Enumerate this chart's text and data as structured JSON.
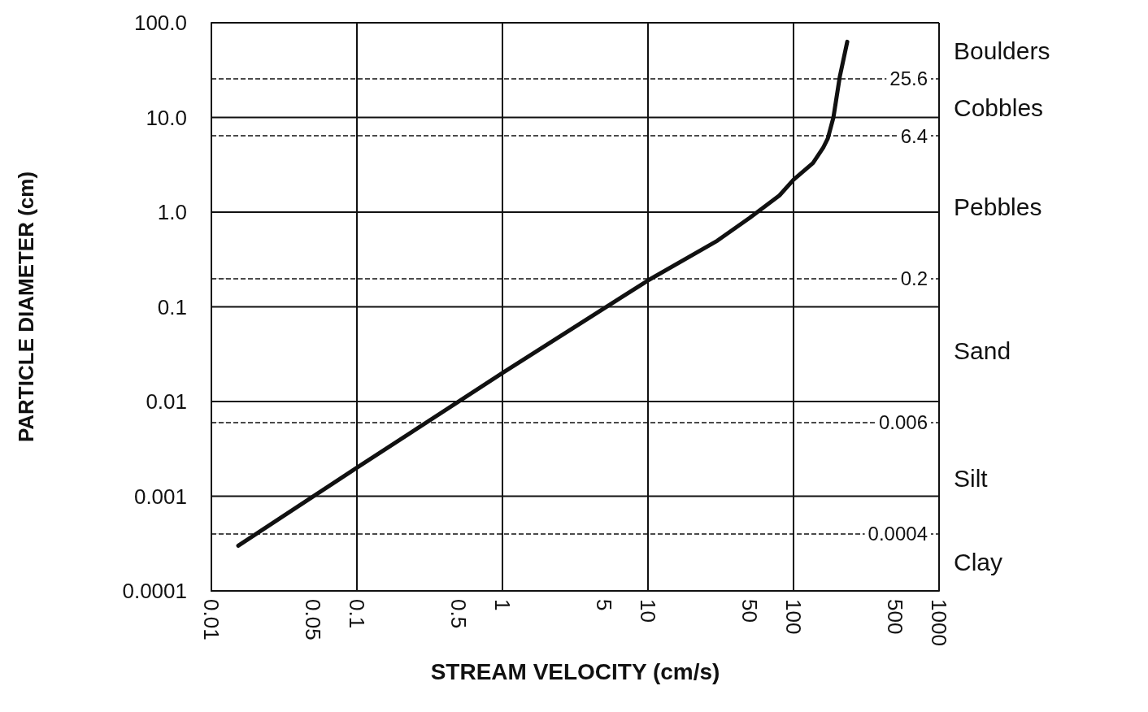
{
  "chart_data": {
    "type": "line",
    "xlabel": "STREAM VELOCITY (cm/s)",
    "ylabel": "PARTICLE DIAMETER (cm)",
    "x": [
      0.0153,
      0.1,
      1,
      10,
      30,
      50,
      80,
      100,
      136,
      160,
      172,
      188,
      208,
      234
    ],
    "series": [
      {
        "color": "#111111",
        "values": [
          0.0003,
          0.002,
          0.02,
          0.19,
          0.5,
          0.87,
          1.5,
          2.2,
          3.3,
          4.8,
          6,
          10,
          27,
          63
        ]
      }
    ],
    "log": "xy",
    "xlim": [
      0.01,
      1000
    ],
    "ylim": [
      0.0001,
      100
    ],
    "xticks": [
      0.01,
      0.05,
      0.1,
      0.5,
      1,
      5,
      10,
      50,
      100,
      500,
      1000
    ],
    "yticks": [
      {
        "value": 0.0001,
        "label": "0.0001"
      },
      {
        "value": 0.001,
        "label": "0.001"
      },
      {
        "value": 0.01,
        "label": "0.01"
      },
      {
        "value": 0.1,
        "label": "0.1"
      },
      {
        "value": 1,
        "label": "1.0"
      },
      {
        "value": 10,
        "label": "10.0"
      },
      {
        "value": 100,
        "label": "100.0"
      }
    ],
    "ref_lines": [
      {
        "axis": "y",
        "value": 25.6,
        "label": "25.6",
        "line_style": "dashed"
      },
      {
        "axis": "y",
        "value": 6.4,
        "label": "6.4",
        "line_style": "dashed"
      },
      {
        "axis": "y",
        "value": 0.2,
        "label": "0.2",
        "line_style": "dashed"
      },
      {
        "axis": "y",
        "value": 0.006,
        "label": "0.006",
        "line_style": "dashed"
      },
      {
        "axis": "y",
        "value": 0.0004,
        "label": "0.0004",
        "line_style": "dashed"
      }
    ],
    "bands": [
      {
        "axis": "y",
        "from": 25.6,
        "to": 100,
        "label": "Boulders",
        "color": "#ffffff"
      },
      {
        "axis": "y",
        "from": 6.4,
        "to": 25.6,
        "label": "Cobbles",
        "color": "#ffffff"
      },
      {
        "axis": "y",
        "from": 0.2,
        "to": 6.4,
        "label": "Pebbles",
        "color": "#ffffff"
      },
      {
        "axis": "y",
        "from": 0.006,
        "to": 0.2,
        "label": "Sand",
        "color": "#ffffff"
      },
      {
        "axis": "y",
        "from": 0.0004,
        "to": 0.006,
        "label": "Silt",
        "color": "#ffffff"
      },
      {
        "axis": "y",
        "from": 0.0001,
        "to": 0.0004,
        "label": "Clay",
        "color": "#ffffff"
      }
    ],
    "grid": true,
    "marker": "none",
    "line_style": "solid"
  }
}
